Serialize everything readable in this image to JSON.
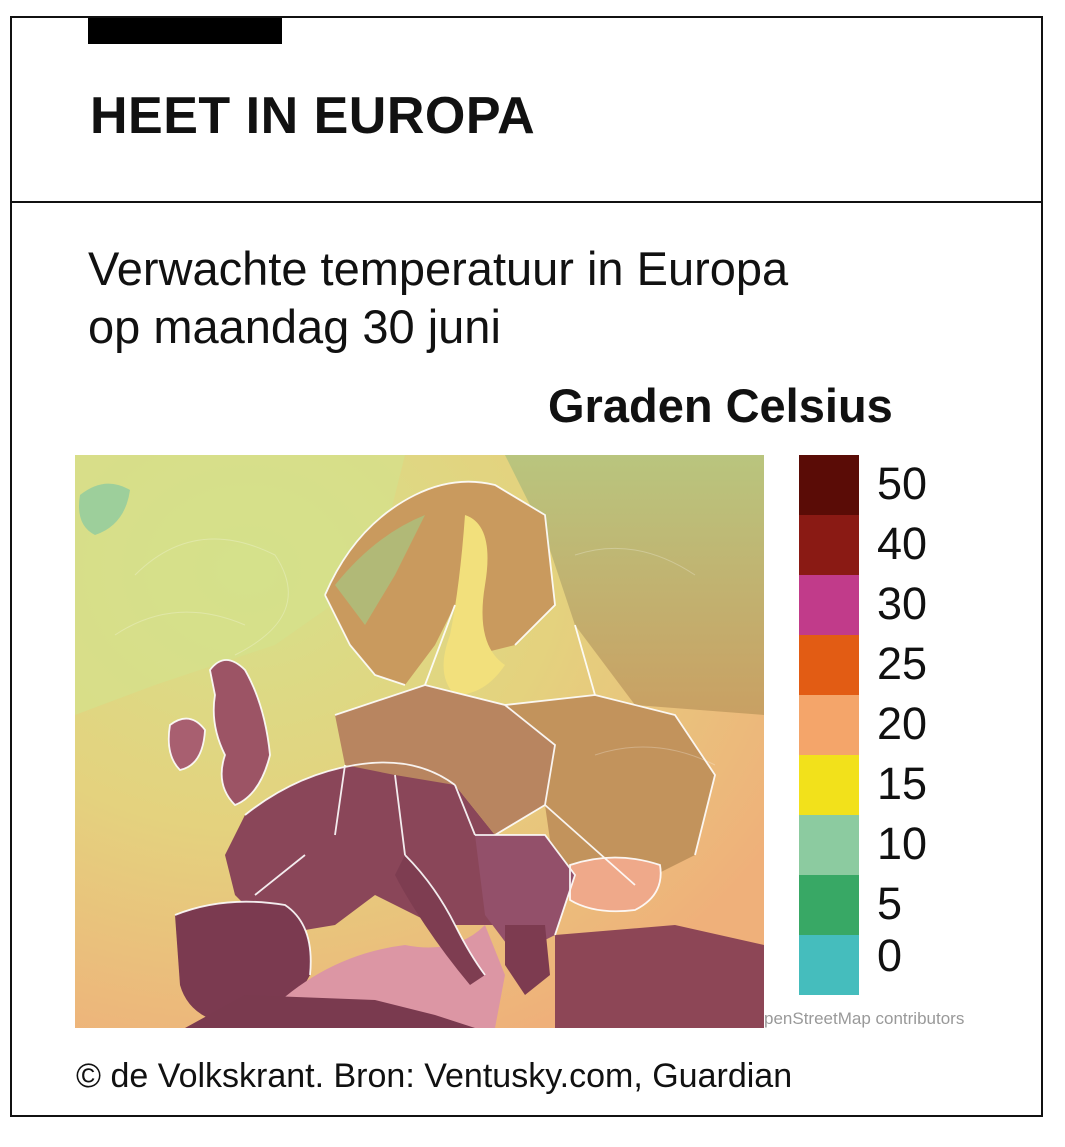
{
  "header": {
    "title": "HEET IN EUROPA"
  },
  "subtitle": "Verwachte temperatuur in Europa op maandag 30 juni",
  "legend": {
    "unit": "Graden Celsius",
    "items": [
      {
        "label": "50",
        "color": "#5a0c06"
      },
      {
        "label": "40",
        "color": "#8a1a14"
      },
      {
        "label": "30",
        "color": "#c13b8a"
      },
      {
        "label": "25",
        "color": "#e25c14"
      },
      {
        "label": "20",
        "color": "#f4a56a"
      },
      {
        "label": "15",
        "color": "#f2e11b"
      },
      {
        "label": "10",
        "color": "#8ccba0"
      },
      {
        "label": "5",
        "color": "#38a865"
      },
      {
        "label": "0",
        "color": "#45bdbd"
      }
    ]
  },
  "map": {
    "attribution": "penStreetMap contributors",
    "colors": {
      "sea_cool": "#d8df86",
      "sea_warm": "#eeb87a",
      "land_mild": "#c89a5c",
      "land_hot": "#8e4a5c",
      "land_very_hot": "#7a3a4f",
      "sea_hot": "#d98f9e",
      "land_cool": "#b7c47a",
      "borders": "#ffffff"
    }
  },
  "footer": {
    "credit": "© de Volkskrant. Bron: Ventusky.com, Guardian"
  }
}
